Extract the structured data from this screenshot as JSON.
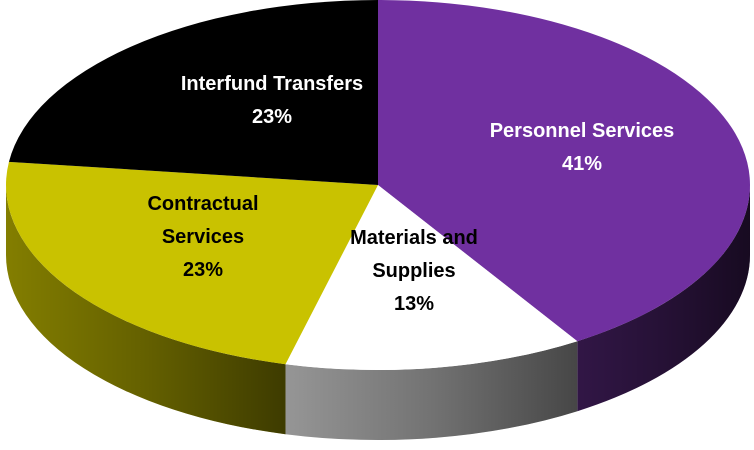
{
  "chart_data": {
    "type": "pie",
    "categories": [
      "Personnel Services",
      "Materials and Supplies",
      "Contractual Services",
      "Interfund Transfers"
    ],
    "values": [
      41,
      13,
      23,
      23
    ],
    "value_labels": [
      "41%",
      "13%",
      "23%",
      "23%"
    ],
    "colors": [
      "#7030a0",
      "#ffffff",
      "#c9c200",
      "#000000"
    ]
  }
}
